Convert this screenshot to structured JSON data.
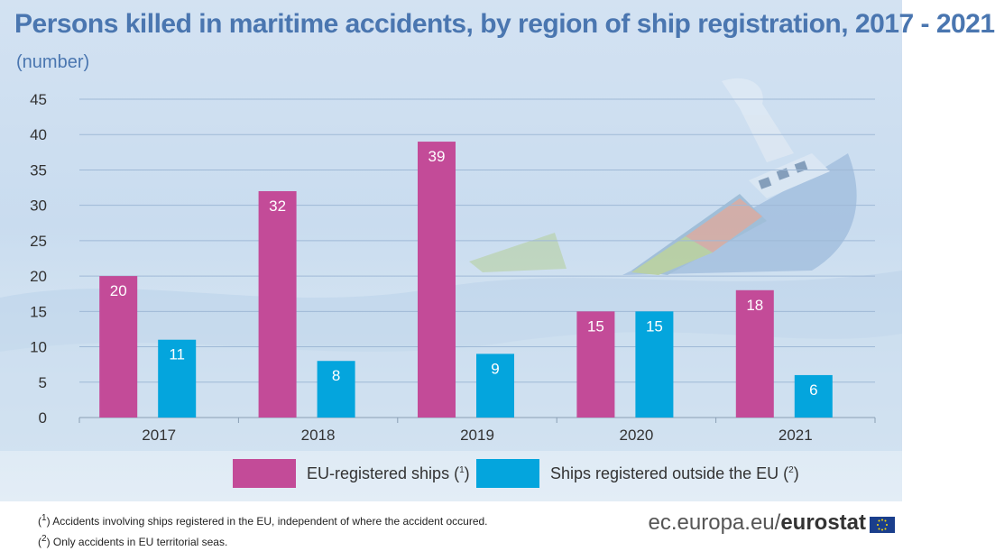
{
  "title": "Persons killed in maritime accidents, by region of ship registration, 2017 - 2021",
  "subtitle": "(number)",
  "chart_data": {
    "type": "bar",
    "categories": [
      "2017",
      "2018",
      "2019",
      "2020",
      "2021"
    ],
    "series": [
      {
        "name": "EU-registered ships",
        "values": [
          20,
          32,
          39,
          15,
          18
        ],
        "color": "#c34b98"
      },
      {
        "name": "Ships registered outside the EU",
        "values": [
          11,
          8,
          9,
          15,
          6
        ],
        "color": "#04a5dd"
      }
    ],
    "ylim": [
      0,
      45
    ],
    "yticks": [
      0,
      5,
      10,
      15,
      20,
      25,
      30,
      35,
      40,
      45
    ],
    "grid": true,
    "legend": "bottom"
  },
  "legend": {
    "eu_label": "EU-registered ships (",
    "eu_sup": "1",
    "eu_close": ")",
    "non_eu_label": "Ships registered outside the EU (",
    "non_eu_sup": "2",
    "non_eu_close": ")"
  },
  "footnotes": {
    "note1_open": "(",
    "note1_sup": "1",
    "note1_text": ") Accidents involving ships registered in the EU,  independent of where the accident occured.",
    "note2_open": "(",
    "note2_sup": "2",
    "note2_text": ") Only accidents in EU territorial seas."
  },
  "brand": {
    "prefix": "ec.europa.eu/",
    "name": "eurostat"
  },
  "colors": {
    "title": "#4a76b0",
    "grid": "#9fb9d6"
  }
}
